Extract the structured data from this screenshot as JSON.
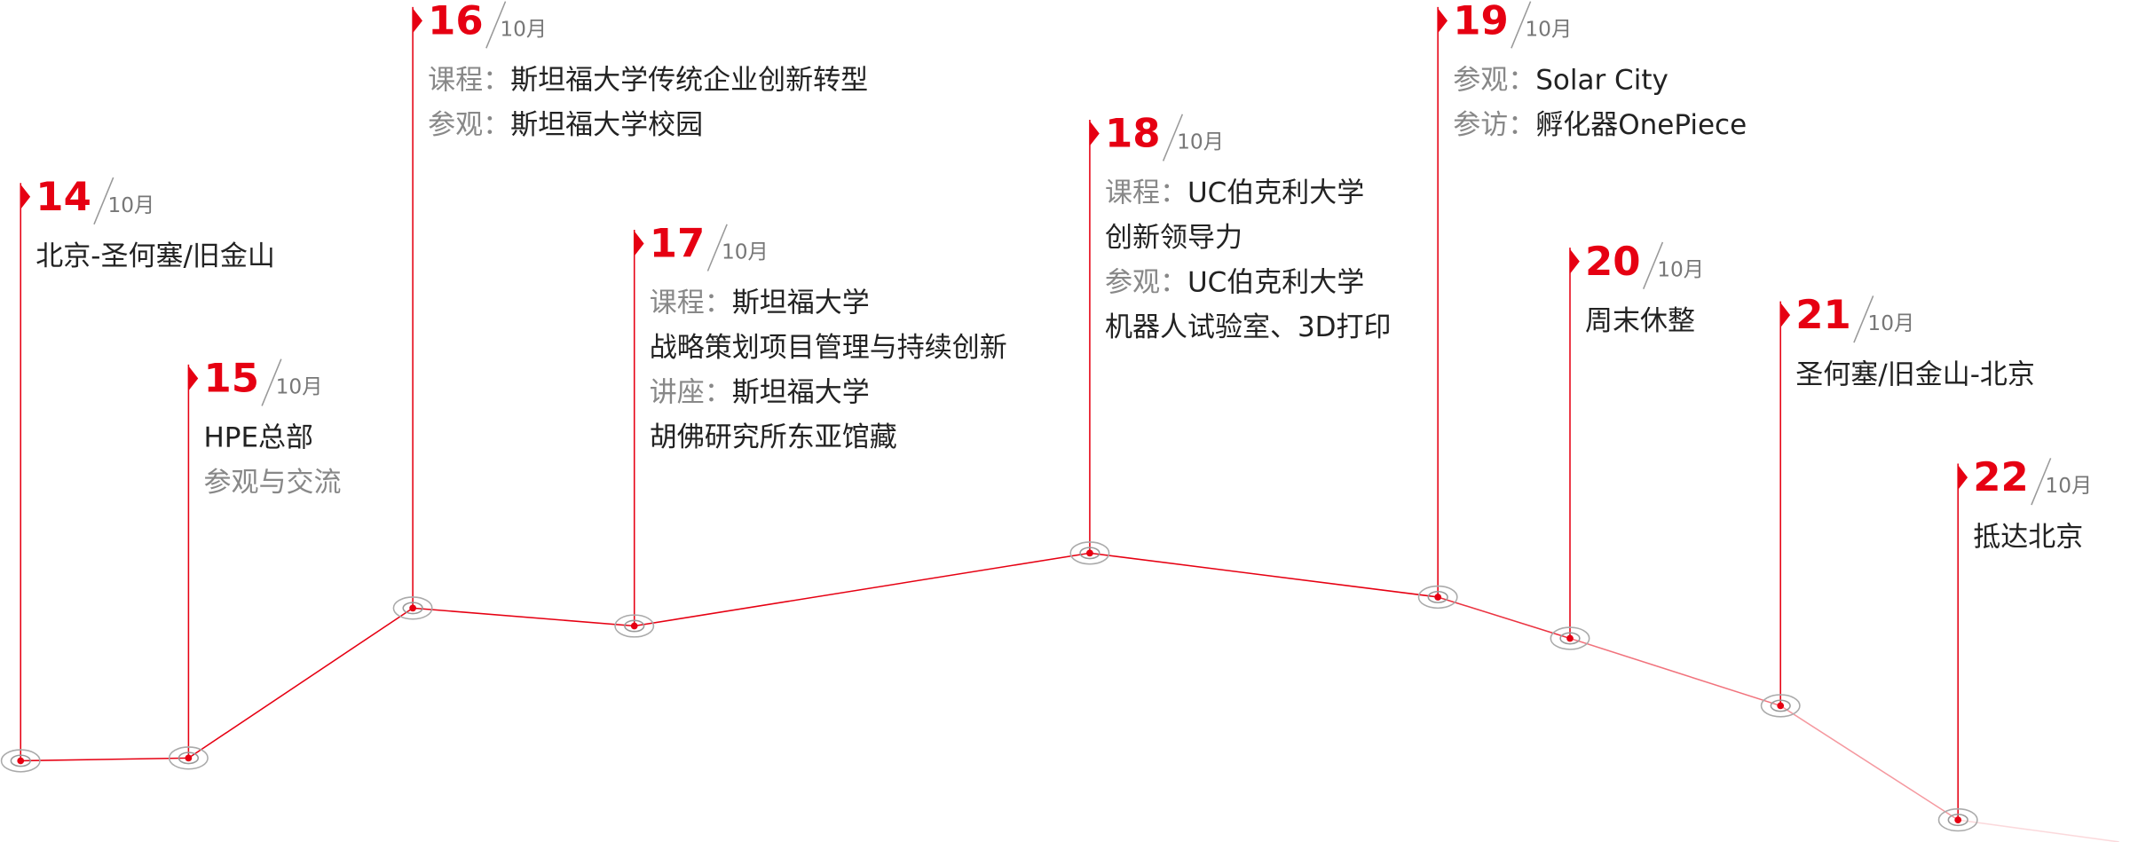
{
  "items": [
    {
      "day": "14",
      "month": "10月",
      "lines": [
        {
          "text": "北京-圣何塞/旧金山"
        }
      ]
    },
    {
      "day": "15",
      "month": "10月",
      "lines": [
        {
          "text": "HPE总部"
        },
        {
          "label": "参观与交流"
        }
      ]
    },
    {
      "day": "16",
      "month": "10月",
      "lines": [
        {
          "label": "课程：",
          "text": "斯坦福大学传统企业创新转型"
        },
        {
          "label": "参观：",
          "text": "斯坦福大学校园"
        }
      ]
    },
    {
      "day": "17",
      "month": "10月",
      "lines": [
        {
          "label": "课程：",
          "text": "斯坦福大学"
        },
        {
          "text": "战略策划项目管理与持续创新"
        },
        {
          "label": "讲座：",
          "text": "斯坦福大学"
        },
        {
          "text": "胡佛研究所东亚馆藏"
        }
      ]
    },
    {
      "day": "18",
      "month": "10月",
      "lines": [
        {
          "label": "课程：",
          "text": "UC伯克利大学"
        },
        {
          "text": "创新领导力"
        },
        {
          "label": "参观：",
          "text": "UC伯克利大学"
        },
        {
          "text": "机器人试验室、3D打印"
        }
      ]
    },
    {
      "day": "19",
      "month": "10月",
      "lines": [
        {
          "label": "参观：",
          "text": "Solar City"
        },
        {
          "label": "参访：",
          "text": "孵化器OnePiece"
        }
      ]
    },
    {
      "day": "20",
      "month": "10月",
      "lines": [
        {
          "text": "周末休整"
        }
      ]
    },
    {
      "day": "21",
      "month": "10月",
      "lines": [
        {
          "text": "圣何塞/旧金山-北京"
        }
      ]
    },
    {
      "day": "22",
      "month": "10月",
      "lines": [
        {
          "text": "抵达北京"
        }
      ]
    }
  ]
}
